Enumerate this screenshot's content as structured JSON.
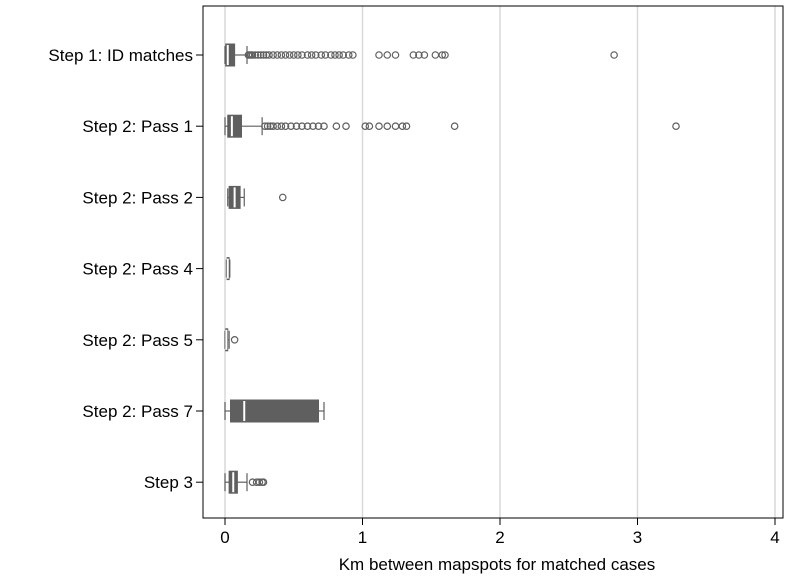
{
  "chart_data": {
    "type": "boxplot",
    "orientation": "horizontal",
    "title": "",
    "xlabel": "Km between mapspots for matched cases",
    "ylabel": "",
    "xlim": [
      0,
      4
    ],
    "x_ticks": [
      0,
      1,
      2,
      3,
      4
    ],
    "grid": true,
    "legend": "none",
    "colors": {
      "box_fill": "#5f5f5f",
      "median": "#ffffff",
      "outline": "#5f5f5f",
      "grid": "#d9d9d9",
      "axis": "#000000"
    },
    "categories": [
      "Step 1: ID matches",
      "Step 2: Pass 1",
      "Step 2: Pass 2",
      "Step 2: Pass 4",
      "Step 2: Pass 5",
      "Step 2: Pass 7",
      "Step 3"
    ],
    "boxes": [
      {
        "category": "Step 1: ID matches",
        "whisker_low": 0.0,
        "q1": 0.005,
        "median": 0.02,
        "q3": 0.07,
        "whisker_high": 0.16,
        "outliers": [
          0.17,
          0.18,
          0.19,
          0.2,
          0.22,
          0.24,
          0.26,
          0.28,
          0.3,
          0.32,
          0.35,
          0.38,
          0.41,
          0.44,
          0.47,
          0.5,
          0.53,
          0.56,
          0.6,
          0.63,
          0.66,
          0.7,
          0.73,
          0.77,
          0.8,
          0.83,
          0.86,
          0.9,
          0.93,
          1.12,
          1.18,
          1.24,
          1.37,
          1.41,
          1.45,
          1.53,
          1.58,
          1.6,
          2.83
        ]
      },
      {
        "category": "Step 2: Pass 1",
        "whisker_low": 0.0,
        "q1": 0.02,
        "median": 0.05,
        "q3": 0.12,
        "whisker_high": 0.27,
        "outliers": [
          0.29,
          0.31,
          0.33,
          0.35,
          0.38,
          0.41,
          0.44,
          0.48,
          0.52,
          0.56,
          0.6,
          0.64,
          0.68,
          0.72,
          0.81,
          0.88,
          1.02,
          1.05,
          1.12,
          1.18,
          1.24,
          1.29,
          1.32,
          1.67,
          3.28
        ]
      },
      {
        "category": "Step 2: Pass 2",
        "whisker_low": 0.02,
        "q1": 0.03,
        "median": 0.07,
        "q3": 0.11,
        "whisker_high": 0.14,
        "outliers": [
          0.42
        ]
      },
      {
        "category": "Step 2: Pass 4",
        "whisker_low": 0.01,
        "q1": 0.015,
        "median": 0.02,
        "q3": 0.03,
        "whisker_high": 0.035,
        "outliers": []
      },
      {
        "category": "Step 2: Pass 5",
        "whisker_low": 0.0,
        "q1": 0.005,
        "median": 0.01,
        "q3": 0.02,
        "whisker_high": 0.03,
        "outliers": [
          0.07
        ]
      },
      {
        "category": "Step 2: Pass 7",
        "whisker_low": 0.0,
        "q1": 0.04,
        "median": 0.14,
        "q3": 0.68,
        "whisker_high": 0.72,
        "outliers": []
      },
      {
        "category": "Step 3",
        "whisker_low": 0.0,
        "q1": 0.03,
        "median": 0.06,
        "q3": 0.09,
        "whisker_high": 0.16,
        "outliers": [
          0.2,
          0.23,
          0.25,
          0.27,
          0.28
        ]
      }
    ]
  }
}
